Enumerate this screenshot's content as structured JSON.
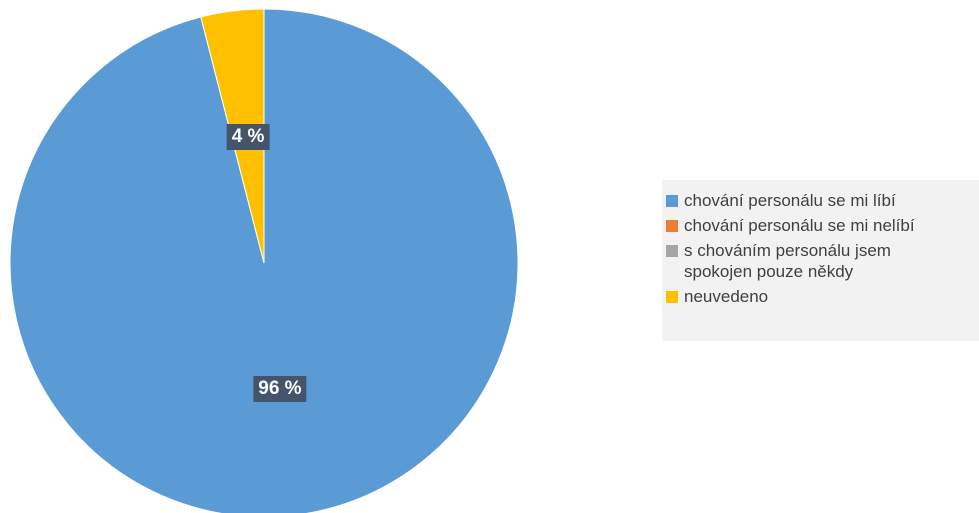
{
  "chart_data": {
    "type": "pie",
    "title": "",
    "categories": [
      "chování personálu se mi líbí",
      "chování personálu se mi nelíbí",
      "s chováním personálu jsem\nspokojen pouze někdy",
      "neuvedeno"
    ],
    "values": [
      96,
      0,
      0,
      4
    ],
    "colors": [
      "#5b9bd5",
      "#ed7d31",
      "#a5a5a5",
      "#ffc000"
    ],
    "data_labels": [
      "96 %",
      "",
      "",
      "4 %"
    ],
    "start_angle": "12 o'clock",
    "direction": "clockwise",
    "legend_position": "right",
    "label_style": "white bold text on dark slate box"
  }
}
